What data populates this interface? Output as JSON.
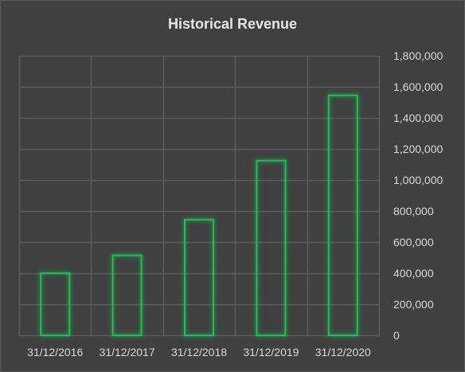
{
  "chart_data": {
    "type": "bar",
    "title": "Historical Revenue",
    "xlabel": "",
    "ylabel": "",
    "categories": [
      "31/12/2016",
      "31/12/2017",
      "31/12/2018",
      "31/12/2019",
      "31/12/2020"
    ],
    "values": [
      400000,
      515000,
      745000,
      1125000,
      1545000
    ],
    "ylim": [
      0,
      1800000
    ],
    "yticks": [
      0,
      200000,
      400000,
      600000,
      800000,
      1000000,
      1200000,
      1400000,
      1600000,
      1800000
    ],
    "ytick_labels": [
      "0",
      "200,000",
      "400,000",
      "600,000",
      "800,000",
      "1,000,000",
      "1,200,000",
      "1,400,000",
      "1,600,000",
      "1,800,000"
    ],
    "y_axis_position": "right",
    "grid": true,
    "legend": "none",
    "colors": {
      "background": "#404040",
      "grid": "#5c5c5c",
      "bar_outline": "#1fbf55",
      "bar_glow": "#23d35e",
      "text": "#d9d9d9"
    }
  }
}
